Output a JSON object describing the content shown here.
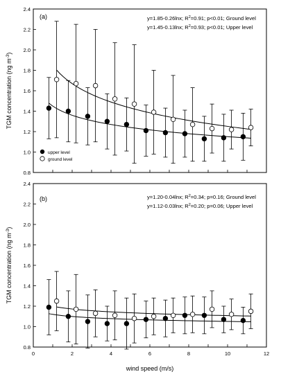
{
  "chart_data": [
    {
      "type": "scatter",
      "panel_label": "(a)",
      "ylabel": "TGM concentration (ng m",
      "ylabel_sup": "-3",
      "ylabel_end": ")",
      "ylim": [
        0.8,
        2.4
      ],
      "xlim": [
        0,
        12
      ],
      "yticks": [
        "0.8",
        "1.0",
        "1.2",
        "1.4",
        "1.6",
        "1.8",
        "2.0",
        "2.2",
        "2.4"
      ],
      "legend": {
        "placement": "bottom-left",
        "entries": [
          "upper level",
          "ground level"
        ]
      },
      "equations": [
        {
          "pre": "y=1.85-0.26lnx; R",
          "sup": "2",
          "post": "=0.91; p<0.01; Ground level"
        },
        {
          "pre": "y=1.45-0.13lnx; R",
          "sup": "2",
          "post": "=0.93; p<0.01; Upper level"
        }
      ],
      "series": [
        {
          "name": "upper level",
          "marker": "filled",
          "x": [
            0.8,
            1.8,
            2.8,
            3.8,
            4.8,
            5.8,
            6.8,
            7.8,
            8.8,
            9.8,
            10.8
          ],
          "y": [
            1.43,
            1.4,
            1.35,
            1.3,
            1.27,
            1.21,
            1.19,
            1.18,
            1.13,
            1.14,
            1.15
          ],
          "err": [
            0.3,
            0.3,
            0.28,
            0.27,
            0.26,
            0.25,
            0.24,
            0.23,
            0.22,
            0.23,
            0.23
          ],
          "fit": {
            "a": 1.45,
            "b": -0.13,
            "xmin": 0.8,
            "xmax": 11.2
          }
        },
        {
          "name": "ground level",
          "marker": "open",
          "x": [
            1.2,
            2.2,
            3.2,
            4.2,
            5.2,
            6.2,
            7.2,
            8.2,
            9.2,
            10.2,
            11.2
          ],
          "y": [
            1.71,
            1.67,
            1.65,
            1.52,
            1.47,
            1.39,
            1.32,
            1.27,
            1.23,
            1.22,
            1.24
          ],
          "err": [
            0.57,
            0.58,
            0.55,
            0.55,
            0.58,
            0.41,
            0.43,
            0.36,
            0.24,
            0.19,
            0.18
          ],
          "fit": {
            "a": 1.85,
            "b": -0.26,
            "xmin": 1.2,
            "xmax": 11.2
          }
        }
      ]
    },
    {
      "type": "scatter",
      "panel_label": "(b)",
      "ylabel": "TGM concentration (ng m",
      "ylabel_sup": "-3",
      "ylabel_end": ")",
      "xlabel": "wind speed (m/s)",
      "ylim": [
        0.8,
        2.4
      ],
      "xlim": [
        0,
        12
      ],
      "yticks": [
        "0.8",
        "1.0",
        "1.2",
        "1.4",
        "1.6",
        "1.8",
        "2.0",
        "2.2",
        "2.4"
      ],
      "xticks": [
        "0",
        "2",
        "4",
        "6",
        "8",
        "10",
        "12"
      ],
      "equations": [
        {
          "pre": "y=1.20-0.04lnx; R",
          "sup": "2",
          "post": "=0.34; p=0.16; Ground level"
        },
        {
          "pre": "y=1.12-0.03lnx; R",
          "sup": "2",
          "post": "=0.20; p=0.06; Upper level"
        }
      ],
      "series": [
        {
          "name": "upper level",
          "marker": "filled",
          "x": [
            0.8,
            1.8,
            2.8,
            3.8,
            4.8,
            5.8,
            6.8,
            7.8,
            8.8,
            9.8,
            10.8
          ],
          "y": [
            1.19,
            1.1,
            1.05,
            1.03,
            1.03,
            1.07,
            1.08,
            1.11,
            1.11,
            1.07,
            1.06
          ],
          "err": [
            0.27,
            0.25,
            0.26,
            0.17,
            0.25,
            0.18,
            0.18,
            0.18,
            0.18,
            0.13,
            0.13
          ],
          "fit": {
            "a": 1.12,
            "b": -0.03,
            "xmin": 0.8,
            "xmax": 11.2
          }
        },
        {
          "name": "ground level",
          "marker": "open",
          "x": [
            1.2,
            2.2,
            3.2,
            4.2,
            5.2,
            6.2,
            7.2,
            8.2,
            9.2,
            10.2,
            11.2
          ],
          "y": [
            1.25,
            1.17,
            1.13,
            1.11,
            1.08,
            1.1,
            1.11,
            1.12,
            1.17,
            1.12,
            1.15
          ],
          "err": [
            0.29,
            0.34,
            0.23,
            0.24,
            0.24,
            0.18,
            0.17,
            0.18,
            0.18,
            0.15,
            0.17
          ],
          "fit": {
            "a": 1.2,
            "b": -0.04,
            "xmin": 1.2,
            "xmax": 11.2
          }
        }
      ]
    }
  ]
}
